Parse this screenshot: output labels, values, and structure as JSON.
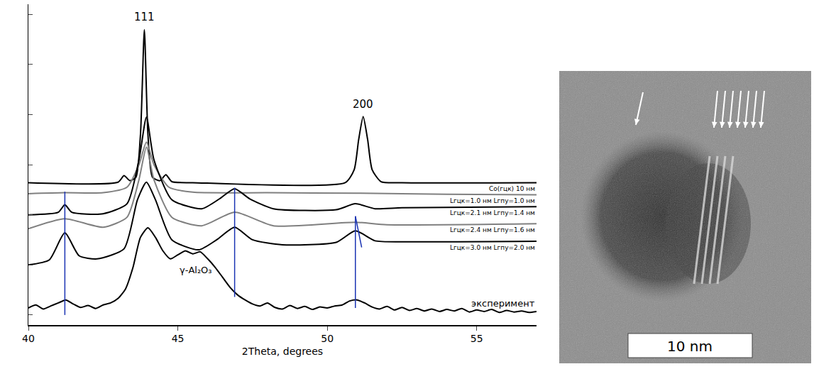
{
  "chart_data": {
    "type": "line",
    "x_label": "2Theta, degrees",
    "xlim": [
      40,
      57
    ],
    "xticks": [
      40,
      45,
      50,
      55
    ],
    "ylim": [
      -0.2,
      6.2
    ],
    "yticks": [
      0,
      1,
      2,
      3,
      4,
      5,
      6
    ],
    "tick_labels": "x",
    "grid": false,
    "series": [
      {
        "name": "Co(гцк) 10 нм",
        "color": "#000000",
        "x": [
          40,
          43.0,
          43.2,
          43.4,
          43.6,
          43.75,
          43.88,
          44.0,
          44.15,
          44.4,
          44.6,
          44.8,
          45.5,
          50.6,
          50.9,
          51.05,
          51.2,
          51.35,
          51.5,
          51.8,
          52.5,
          57
        ],
        "values": [
          2.64,
          2.65,
          2.78,
          2.68,
          2.75,
          3.6,
          5.69,
          3.6,
          2.75,
          2.68,
          2.8,
          2.66,
          2.64,
          2.64,
          2.9,
          3.5,
          3.96,
          3.5,
          2.9,
          2.66,
          2.64,
          2.64
        ]
      },
      {
        "name": "Lгцк=1.0 нм Lгпу=1.0 нм",
        "color": "#808080",
        "x": [
          40,
          41.2,
          42.5,
          43.3,
          43.7,
          43.95,
          44.2,
          44.7,
          45.5,
          48,
          51,
          54,
          57
        ],
        "values": [
          2.42,
          2.44,
          2.44,
          2.55,
          3.0,
          3.45,
          3.0,
          2.55,
          2.45,
          2.44,
          2.43,
          2.41,
          2.4
        ]
      },
      {
        "name": "Lгцк=2.1 нм Lгпу=1.4 нм",
        "color": "#000000",
        "x": [
          40,
          41.0,
          41.22,
          41.45,
          42.5,
          43.3,
          43.7,
          43.95,
          44.2,
          44.8,
          45.8,
          46.4,
          46.9,
          47.4,
          48.2,
          50.3,
          50.94,
          51.6,
          52.5,
          57
        ],
        "values": [
          2.0,
          2.05,
          2.2,
          2.05,
          2.02,
          2.22,
          3.1,
          3.95,
          3.1,
          2.3,
          2.12,
          2.32,
          2.52,
          2.32,
          2.12,
          2.1,
          2.22,
          2.12,
          2.14,
          2.16
        ]
      },
      {
        "name": "Lгцк=2.4 нм Lгпу=1.6 нм",
        "color": "#808080",
        "x": [
          40,
          41.22,
          42.5,
          43.3,
          43.7,
          43.95,
          44.2,
          44.8,
          45.8,
          46.9,
          48.2,
          50.94,
          52,
          57
        ],
        "values": [
          1.72,
          1.92,
          1.75,
          1.95,
          2.7,
          3.35,
          2.7,
          1.95,
          1.78,
          2.05,
          1.78,
          1.85,
          1.8,
          1.82
        ]
      },
      {
        "name": "Lгцк=3.0 нм Lгпу=2.0 нм",
        "color": "#000000",
        "x": [
          40,
          40.7,
          41.22,
          41.7,
          42.3,
          43.2,
          43.65,
          43.95,
          44.25,
          44.8,
          45.7,
          46.3,
          46.9,
          47.5,
          48.5,
          50.3,
          50.94,
          51.6,
          52.5,
          57
        ],
        "values": [
          1.0,
          1.1,
          1.64,
          1.18,
          1.12,
          1.32,
          2.3,
          2.65,
          2.3,
          1.5,
          1.3,
          1.5,
          1.75,
          1.5,
          1.4,
          1.45,
          1.68,
          1.48,
          1.46,
          1.47
        ]
      },
      {
        "name": "эксперимент",
        "color": "#000000",
        "x": [
          40.0,
          40.25,
          40.5,
          40.75,
          41.0,
          41.25,
          41.5,
          41.75,
          42.0,
          42.25,
          42.5,
          42.75,
          43.0,
          43.25,
          43.5,
          43.75,
          44.0,
          44.25,
          44.5,
          44.75,
          45.0,
          45.25,
          45.5,
          45.75,
          46.0,
          46.25,
          46.5,
          46.75,
          47.0,
          47.25,
          47.5,
          47.75,
          48.0,
          48.25,
          48.5,
          48.75,
          49.0,
          49.25,
          49.5,
          49.75,
          50.0,
          50.25,
          50.5,
          50.75,
          51.0,
          51.25,
          51.5,
          51.75,
          52.0,
          52.25,
          52.5,
          52.75,
          53.0,
          53.25,
          53.5,
          53.75,
          54.0,
          54.25,
          54.5,
          54.75,
          55.0,
          55.25,
          55.5,
          55.75,
          56.0,
          56.25,
          56.5,
          56.75,
          57.0
        ],
        "values": [
          0.14,
          0.2,
          0.12,
          0.18,
          0.24,
          0.3,
          0.22,
          0.15,
          0.19,
          0.13,
          0.2,
          0.24,
          0.33,
          0.52,
          0.95,
          1.55,
          1.74,
          1.55,
          1.28,
          1.12,
          1.2,
          1.28,
          1.22,
          1.26,
          1.12,
          0.95,
          0.75,
          0.55,
          0.4,
          0.3,
          0.22,
          0.18,
          0.24,
          0.15,
          0.12,
          0.19,
          0.13,
          0.17,
          0.11,
          0.16,
          0.14,
          0.18,
          0.2,
          0.28,
          0.3,
          0.24,
          0.16,
          0.12,
          0.17,
          0.1,
          0.15,
          0.09,
          0.13,
          0.08,
          0.12,
          0.07,
          0.11,
          0.08,
          0.13,
          0.06,
          0.1,
          0.07,
          0.11,
          0.05,
          0.09,
          0.06,
          0.08,
          0.05,
          0.07
        ]
      }
    ],
    "reference_lines": {
      "color": "#1a33b3",
      "lines": [
        {
          "x": [
            41.22,
            41.22
          ],
          "y": [
            0,
            2.46
          ]
        },
        {
          "x": [
            46.9,
            46.9
          ],
          "y": [
            0.36,
            2.54
          ]
        },
        {
          "x": [
            50.94,
            50.94
          ],
          "y": [
            0.14,
            1.97
          ]
        },
        {
          "x": [
            50.94,
            51.15
          ],
          "y": [
            1.97,
            1.35
          ]
        }
      ]
    },
    "annotations": [
      {
        "text": "111",
        "x": 43.88,
        "y": 5.95
      },
      {
        "text": "200",
        "x": 51.2,
        "y": 4.2
      },
      {
        "text": "γ-Al₂O₃",
        "x": 45.6,
        "y": 0.9
      }
    ],
    "image": {
      "scale_bar_label": "10 nm"
    }
  }
}
